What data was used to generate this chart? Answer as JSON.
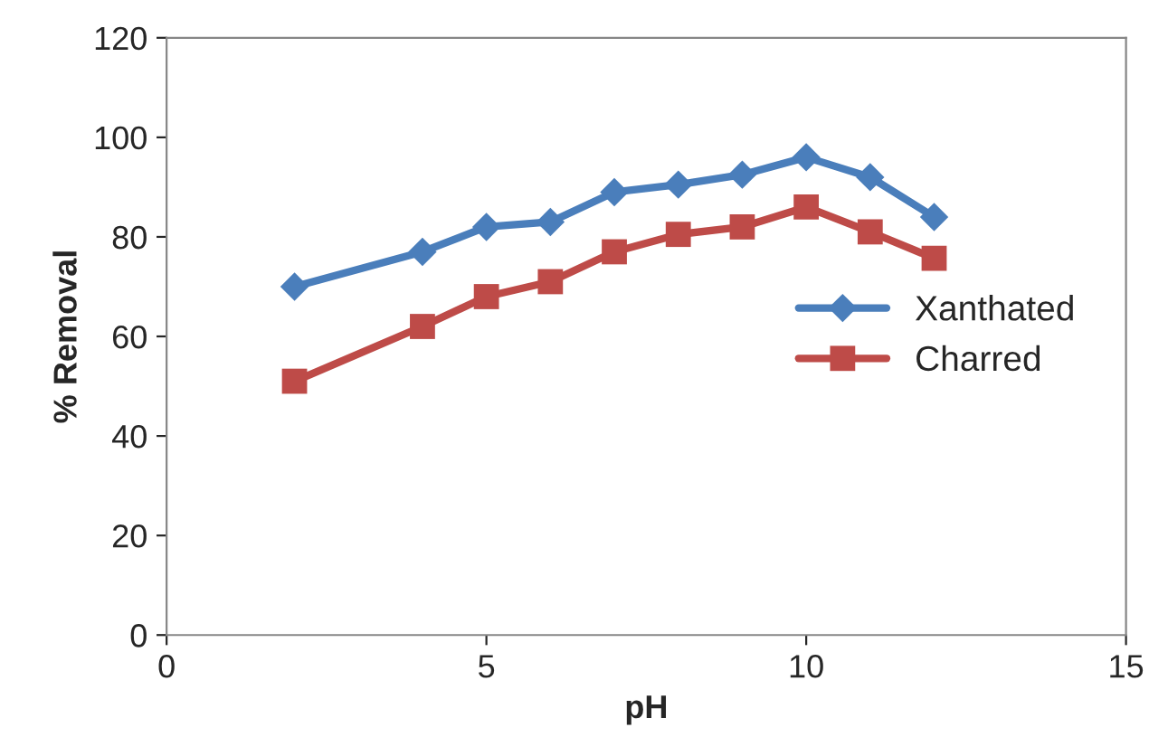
{
  "chart_data": {
    "type": "line",
    "xlabel": "pH",
    "ylabel": "% Removal",
    "xlim": [
      0,
      15
    ],
    "xticks": [
      0,
      5,
      10,
      15
    ],
    "ylim": [
      0,
      120
    ],
    "yticks": [
      0,
      20,
      40,
      60,
      80,
      100,
      120
    ],
    "grid": false,
    "legend": "right",
    "line_style": "solid",
    "series": [
      {
        "name": "Xanthated",
        "color": "#4a7ebb",
        "marker": "diamond",
        "x": [
          2,
          4,
          5,
          6,
          7,
          8,
          9,
          10,
          11,
          12
        ],
        "values": [
          70,
          77,
          82,
          83,
          89,
          90.5,
          92.5,
          96,
          92,
          84
        ]
      },
      {
        "name": "Charred",
        "color": "#be4b48",
        "marker": "square",
        "x": [
          2,
          4,
          5,
          6,
          7,
          8,
          9,
          10,
          11,
          12
        ],
        "values": [
          51,
          62,
          68,
          71,
          77,
          80.5,
          82,
          86,
          81,
          75.7
        ]
      }
    ]
  }
}
